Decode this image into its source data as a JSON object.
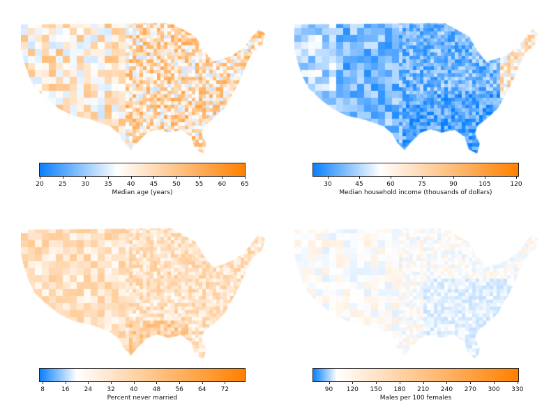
{
  "panels": [
    {
      "id": "median-age",
      "label": "Median age (years)",
      "range": [
        20,
        65
      ],
      "white_at": 37,
      "ticks": [
        "20",
        "25",
        "30",
        "35",
        "40",
        "45",
        "50",
        "55",
        "60",
        "65"
      ],
      "pattern": "age"
    },
    {
      "id": "median-income",
      "label": "Median household income (thousands of dollars)",
      "range": [
        23,
        121
      ],
      "white_at": 55,
      "ticks": [
        "30",
        "45",
        "60",
        "75",
        "90",
        "105",
        "120"
      ],
      "pattern": "income"
    },
    {
      "id": "never-married",
      "label": "Percent never married",
      "range": [
        7,
        79
      ],
      "white_at": 20,
      "ticks": [
        "8",
        "16",
        "24",
        "32",
        "40",
        "48",
        "56",
        "64",
        "72"
      ],
      "pattern": "married"
    },
    {
      "id": "males-per-females",
      "label": "Males per 100 females",
      "range": [
        70,
        331
      ],
      "white_at": 100,
      "ticks": [
        "90",
        "120",
        "150",
        "180",
        "210",
        "240",
        "270",
        "300",
        "330"
      ],
      "pattern": "males"
    }
  ],
  "colors": {
    "low": "#0a80ff",
    "mid": "#ffffff",
    "high": "#ff8000",
    "axis": "#222222"
  }
}
